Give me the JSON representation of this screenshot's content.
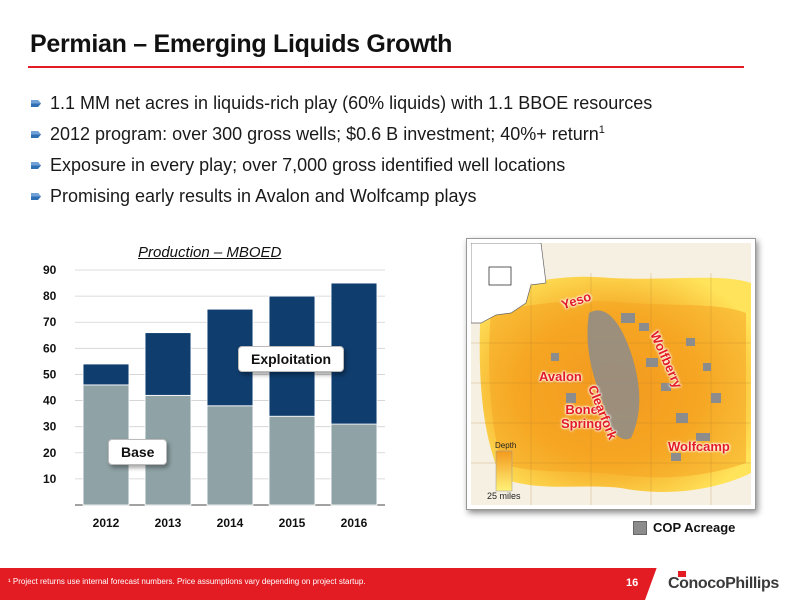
{
  "slide": {
    "title": "Permian – Emerging Liquids Growth",
    "accent_color": "#e31b23"
  },
  "bullets": [
    {
      "text": "1.1 MM net acres in liquids-rich play (60% liquids) with 1.1 BBOE resources",
      "sup": ""
    },
    {
      "text": "2012 program: over 300 gross wells; $0.6 B investment; 40%+ return",
      "sup": "1"
    },
    {
      "text": "Exposure in every play; over 7,000 gross identified well locations",
      "sup": ""
    },
    {
      "text": "Promising early results in Avalon and Wolfcamp plays",
      "sup": ""
    }
  ],
  "bullet_icon": "blue-arrow-bullet-icon",
  "chart_data": {
    "type": "bar",
    "stacked": true,
    "title": "Production – MBOED",
    "categories": [
      "2012",
      "2013",
      "2014",
      "2015",
      "2016"
    ],
    "series": [
      {
        "name": "Base",
        "values": [
          46,
          42,
          38,
          34,
          31
        ],
        "color": "#8fa3a6"
      },
      {
        "name": "Exploitation",
        "values": [
          8,
          24,
          37,
          46,
          54
        ],
        "color": "#0f3d6e"
      }
    ],
    "yticks": [
      10,
      20,
      30,
      40,
      50,
      60,
      70,
      80,
      90
    ],
    "ylim": [
      0,
      90
    ],
    "grid": true,
    "callouts": {
      "exploitation": "Exploitation",
      "base": "Base"
    }
  },
  "map": {
    "labels": {
      "yeso": "Yeso",
      "avalon": "Avalon",
      "bone_line1": "Bone",
      "bone_line2": "Spring",
      "clearfork": "Clearfork",
      "wolfberry": "Wolfberry",
      "wolfcamp": "Wolfcamp"
    },
    "depth_label": "Depth",
    "scale_label": "25 miles",
    "legend": "COP Acreage",
    "colors": {
      "shallow": "#ffe35a",
      "deep": "#f39a1d",
      "acreage": "#8c8c8c"
    }
  },
  "footer": {
    "footnote": "¹ Project returns use internal forecast numbers. Price assumptions vary depending on project startup.",
    "page_number": "16",
    "logo": "ConocoPhillips"
  }
}
